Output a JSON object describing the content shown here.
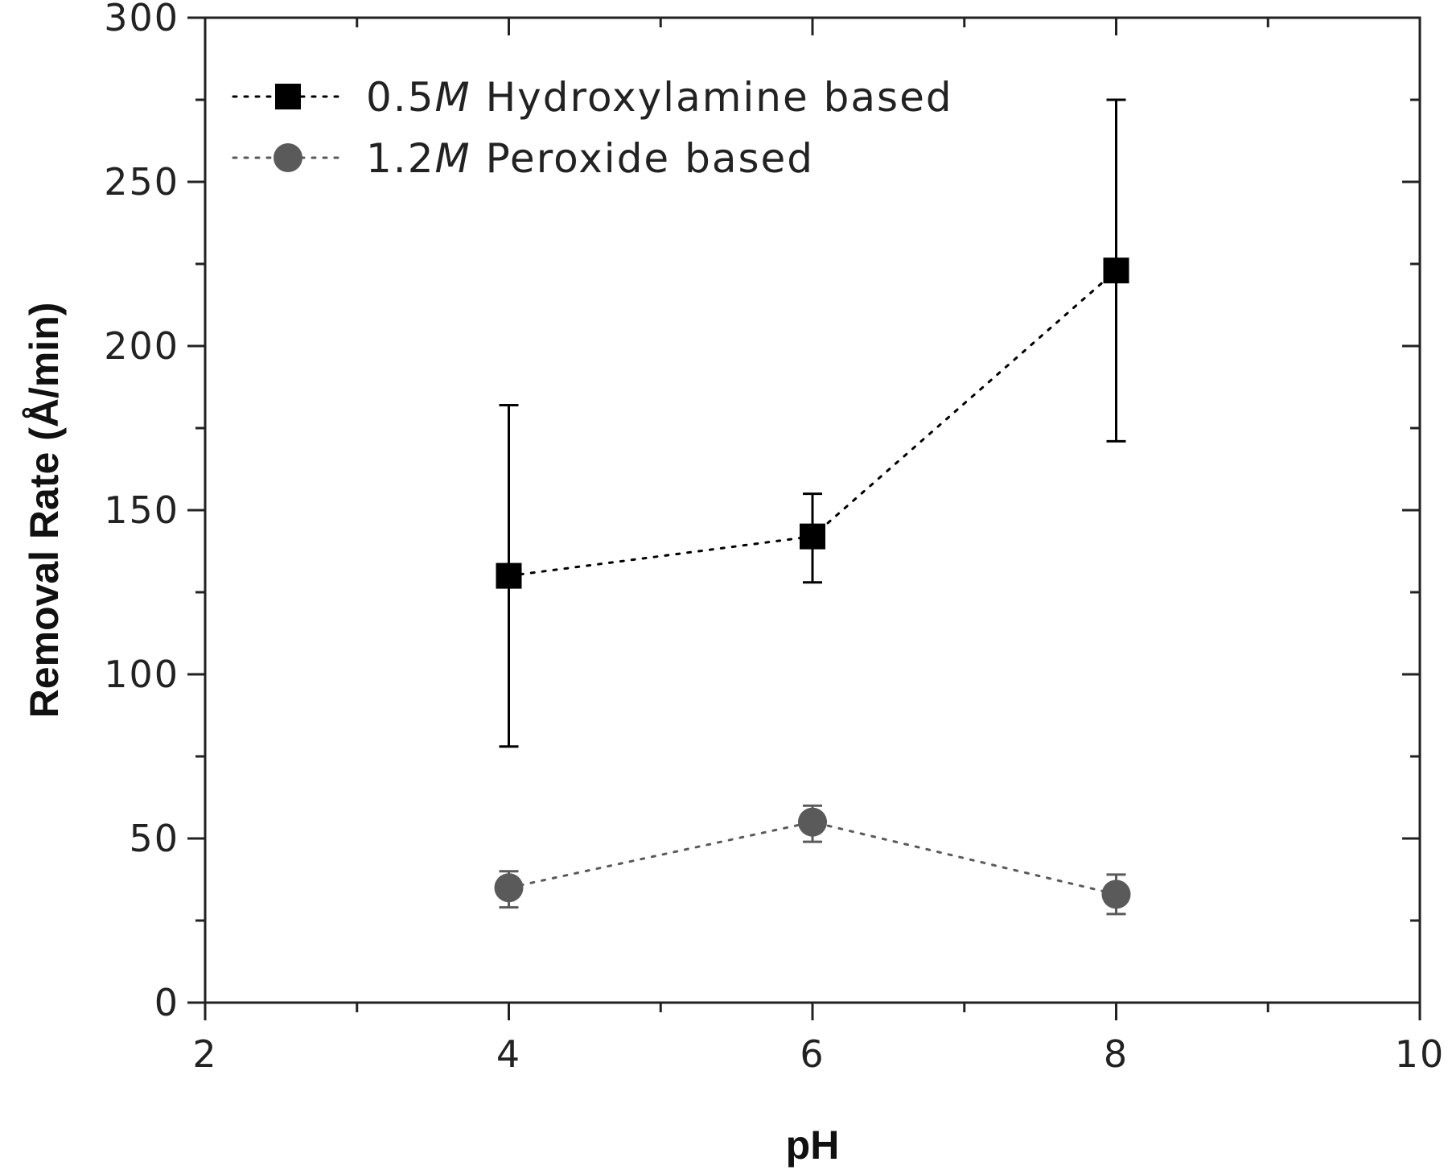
{
  "chart_data": {
    "type": "scatter",
    "title": "",
    "xlabel": "pH",
    "ylabel_main": "Removal Rate  (",
    "ylabel_unit": "Å",
    "ylabel_tail": "/min)",
    "xlim": [
      2,
      10
    ],
    "ylim": [
      0,
      300
    ],
    "x_ticks": [
      2,
      4,
      6,
      8,
      10
    ],
    "x_tick_labels": [
      "2",
      "4",
      "6",
      "8",
      "10"
    ],
    "y_ticks": [
      0,
      50,
      100,
      150,
      200,
      250,
      300
    ],
    "y_tick_labels": [
      "0",
      "50",
      "100",
      "150",
      "200",
      "250",
      "300"
    ],
    "legend_position": "top-left",
    "grid": false,
    "series": [
      {
        "name_prefix": "0.5",
        "name_italic": "M",
        "name_suffix": " Hydroxylamine based",
        "marker": "square",
        "color": "#000000",
        "x": [
          4,
          6,
          8
        ],
        "y": [
          130,
          142,
          223
        ],
        "err_low": [
          78,
          128,
          171
        ],
        "err_high": [
          182,
          155,
          275
        ]
      },
      {
        "name_prefix": "1.2",
        "name_italic": "M",
        "name_suffix": " Peroxide based",
        "marker": "circle",
        "color": "#5a5a5a",
        "x": [
          4,
          6,
          8
        ],
        "y": [
          35,
          55,
          33
        ],
        "err_low": [
          29,
          49,
          27
        ],
        "err_high": [
          40,
          60,
          39
        ]
      }
    ]
  }
}
